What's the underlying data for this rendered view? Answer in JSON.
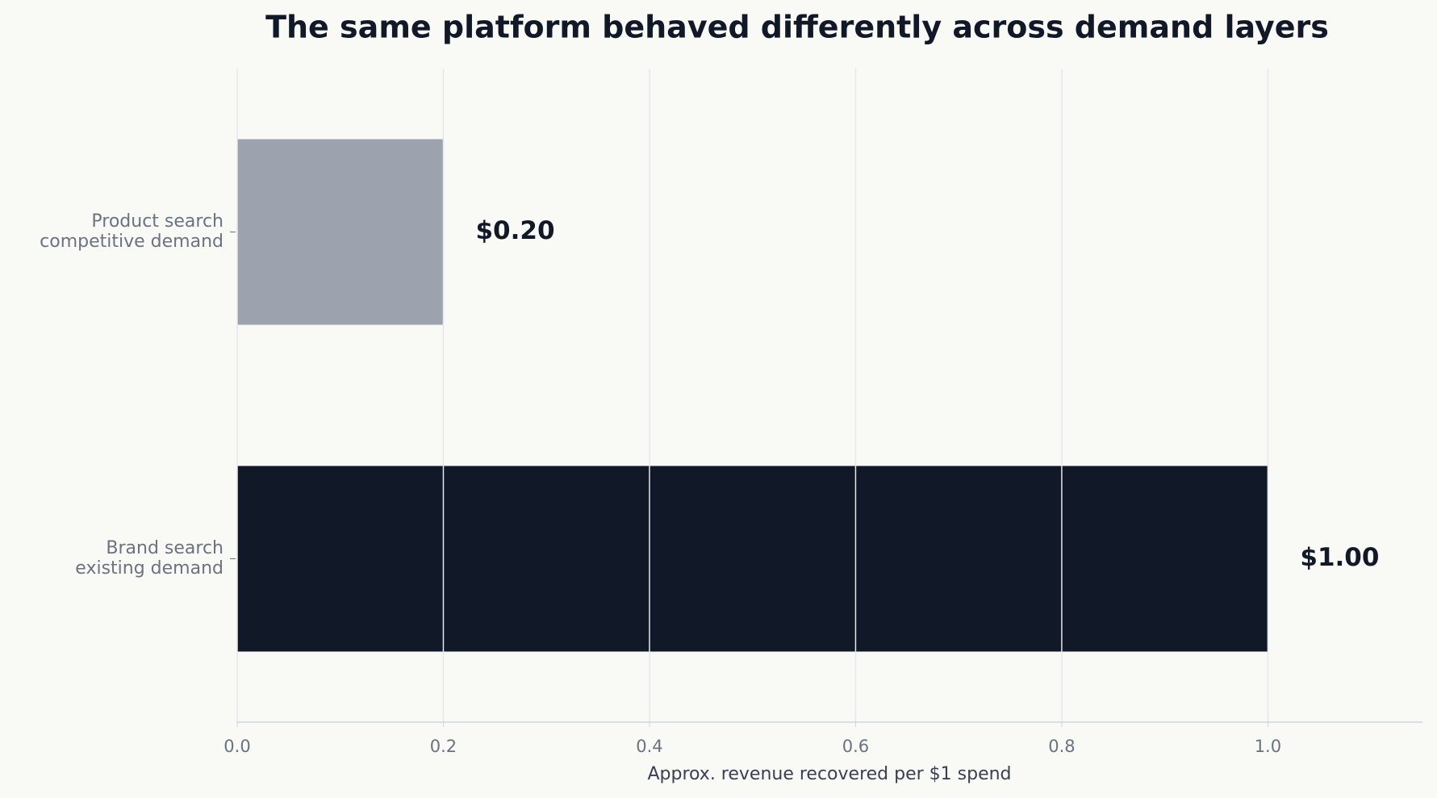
{
  "chart_data": {
    "type": "bar",
    "orientation": "horizontal",
    "title": "The same platform behaved differently across demand layers",
    "x_label": "Approx. revenue recovered per $1 spend",
    "categories": [
      "Product search\ncompetitive demand",
      "Brand search\nexisting demand"
    ],
    "values": [
      0.2,
      1.0
    ],
    "value_labels": [
      "$0.20",
      "$1.00"
    ],
    "colors": [
      "#9ca3af",
      "#111827"
    ],
    "xlim": [
      0,
      1.15
    ],
    "xticks": [
      {
        "value": 0,
        "label": "0.0"
      },
      0.2,
      0.4,
      0.6,
      0.8,
      {
        "value": 1,
        "label": "1.0"
      }
    ],
    "grid": true
  }
}
